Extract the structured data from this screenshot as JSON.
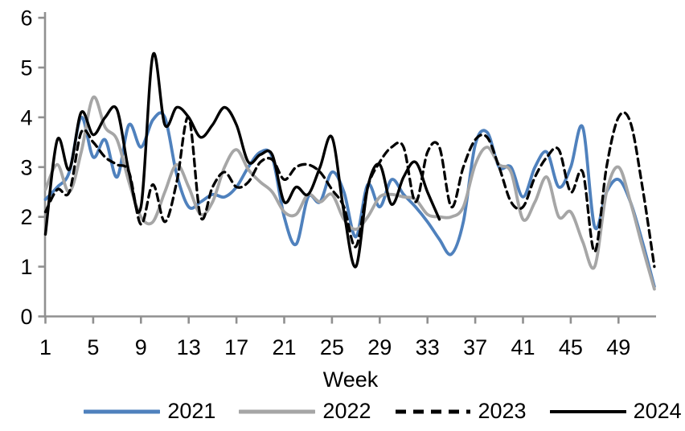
{
  "chart_data": {
    "type": "line",
    "xlabel": "Week",
    "x_ticks": [
      1,
      5,
      9,
      13,
      17,
      21,
      25,
      29,
      33,
      37,
      41,
      45,
      49
    ],
    "y_ticks": [
      0,
      1,
      2,
      3,
      4,
      5,
      6
    ],
    "xlim": [
      1,
      52
    ],
    "ylim": [
      0,
      6
    ],
    "grid": false,
    "legend_position": "bottom",
    "axis_color": "#909090",
    "weeks": [
      1,
      2,
      3,
      4,
      5,
      6,
      7,
      8,
      9,
      10,
      11,
      12,
      13,
      14,
      15,
      16,
      17,
      18,
      19,
      20,
      21,
      22,
      23,
      24,
      25,
      26,
      27,
      28,
      29,
      30,
      31,
      32,
      33,
      34,
      35,
      36,
      37,
      38,
      39,
      40,
      41,
      42,
      43,
      44,
      45,
      46,
      47,
      48,
      49,
      50,
      51,
      52
    ],
    "series": [
      {
        "name": "2021",
        "color": "#4F81BD",
        "style": "solid",
        "values": [
          2.35,
          2.6,
          2.9,
          4.0,
          3.2,
          3.55,
          2.8,
          3.85,
          3.4,
          3.95,
          4.0,
          2.85,
          2.2,
          2.3,
          2.45,
          2.4,
          2.6,
          3.0,
          3.3,
          3.2,
          2.0,
          1.45,
          2.4,
          2.3,
          2.9,
          2.5,
          1.6,
          2.65,
          2.2,
          2.75,
          2.45,
          2.2,
          1.9,
          1.55,
          1.25,
          1.9,
          3.45,
          3.7,
          3.0,
          3.0,
          2.4,
          3.0,
          3.3,
          2.6,
          3.0,
          3.8,
          1.8,
          2.5,
          2.75,
          2.3,
          1.5,
          0.6
        ]
      },
      {
        "name": "2022",
        "color": "#A6A6A6",
        "style": "solid",
        "values": [
          2.55,
          3.05,
          2.5,
          3.3,
          4.4,
          3.8,
          3.55,
          2.7,
          2.0,
          1.9,
          2.5,
          3.05,
          2.6,
          2.05,
          2.3,
          3.0,
          3.35,
          2.95,
          2.7,
          2.5,
          2.1,
          2.05,
          2.45,
          2.3,
          2.45,
          1.95,
          1.75,
          2.0,
          2.4,
          2.45,
          2.4,
          2.35,
          2.05,
          2.0,
          2.0,
          2.2,
          3.05,
          3.4,
          3.05,
          2.9,
          1.95,
          2.3,
          2.8,
          2.0,
          2.1,
          1.5,
          1.0,
          2.5,
          3.0,
          2.3,
          1.4,
          0.55
        ]
      },
      {
        "name": "2023",
        "color": "#000000",
        "style": "dashed",
        "values": [
          2.1,
          2.55,
          2.5,
          3.7,
          3.5,
          3.2,
          3.05,
          2.9,
          1.85,
          2.65,
          1.9,
          2.7,
          4.0,
          2.0,
          2.6,
          2.9,
          2.6,
          2.7,
          3.1,
          3.15,
          2.75,
          3.0,
          3.05,
          2.9,
          2.55,
          2.2,
          1.4,
          2.6,
          3.1,
          3.4,
          3.4,
          2.3,
          3.3,
          3.4,
          2.2,
          3.0,
          3.55,
          3.6,
          3.0,
          2.3,
          2.2,
          2.8,
          3.2,
          3.35,
          2.5,
          2.9,
          1.3,
          3.0,
          4.0,
          3.9,
          2.6,
          1.0
        ]
      },
      {
        "name": "2024",
        "color": "#000000",
        "style": "solid",
        "values": [
          1.65,
          3.55,
          2.95,
          4.1,
          3.65,
          4.0,
          4.15,
          2.9,
          2.2,
          5.25,
          3.85,
          4.2,
          4.0,
          3.6,
          3.85,
          4.2,
          3.85,
          3.1,
          3.25,
          3.25,
          2.3,
          2.6,
          2.45,
          3.0,
          3.6,
          2.1,
          1.0,
          2.6,
          3.05,
          2.25,
          2.8,
          3.1,
          2.5,
          1.95
        ]
      }
    ]
  }
}
